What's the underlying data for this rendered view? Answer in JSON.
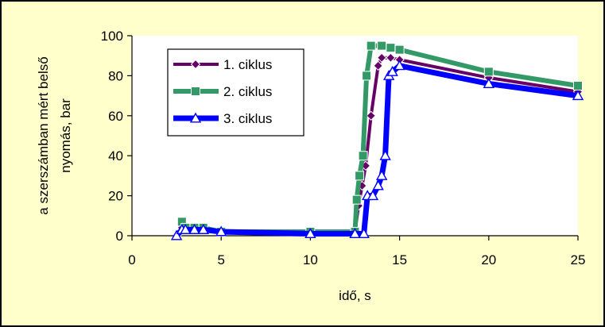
{
  "chart_data": {
    "type": "line",
    "title": "",
    "xlabel": "idő, s",
    "ylabel_line1": "a szerszámban mért belső",
    "ylabel_line2": "nyomás, bar",
    "xlim": [
      0,
      25
    ],
    "ylim": [
      0,
      100
    ],
    "xticks": [
      0,
      5,
      10,
      15,
      20,
      25
    ],
    "yticks": [
      0,
      20,
      40,
      60,
      80,
      100
    ],
    "grid": false,
    "legend_position": "top-left",
    "plot_background": "#FFFFFF",
    "figure_background": "#FFFFCC",
    "series": [
      {
        "name": "1. ciklus",
        "color": "#660066",
        "marker": "diamond",
        "points": [
          [
            2.6,
            1
          ],
          [
            2.8,
            4
          ],
          [
            3,
            4
          ],
          [
            3.5,
            3
          ],
          [
            4,
            3
          ],
          [
            5,
            2
          ],
          [
            10,
            2
          ],
          [
            12.5,
            2
          ],
          [
            12.7,
            15
          ],
          [
            12.9,
            25
          ],
          [
            13.1,
            35
          ],
          [
            13.4,
            60
          ],
          [
            13.8,
            85
          ],
          [
            14,
            89
          ],
          [
            14.5,
            89
          ],
          [
            15,
            88
          ],
          [
            20,
            79
          ],
          [
            25,
            72
          ]
        ]
      },
      {
        "name": "2. ciklus",
        "color": "#339966",
        "marker": "square",
        "points": [
          [
            2.8,
            7
          ],
          [
            3,
            4
          ],
          [
            3.5,
            4
          ],
          [
            4,
            4
          ],
          [
            5,
            2
          ],
          [
            10,
            2
          ],
          [
            12.5,
            2
          ],
          [
            12.6,
            18
          ],
          [
            12.75,
            30
          ],
          [
            12.95,
            40
          ],
          [
            13.15,
            80
          ],
          [
            13.4,
            95
          ],
          [
            14,
            95
          ],
          [
            14.5,
            94
          ],
          [
            15,
            93
          ],
          [
            20,
            82
          ],
          [
            25,
            75
          ]
        ]
      },
      {
        "name": "3. ciklus",
        "color": "#0000FF",
        "marker": "triangle",
        "points": [
          [
            2.5,
            0
          ],
          [
            2.8,
            3
          ],
          [
            3,
            3
          ],
          [
            3.5,
            3
          ],
          [
            4,
            3
          ],
          [
            5,
            2
          ],
          [
            10,
            1
          ],
          [
            12.5,
            1
          ],
          [
            13,
            1
          ],
          [
            13.2,
            20
          ],
          [
            13.5,
            20
          ],
          [
            13.8,
            25
          ],
          [
            14,
            30
          ],
          [
            14.2,
            40
          ],
          [
            14.4,
            80
          ],
          [
            14.6,
            82
          ],
          [
            15,
            85
          ],
          [
            20,
            76
          ],
          [
            25,
            70
          ]
        ]
      }
    ]
  }
}
